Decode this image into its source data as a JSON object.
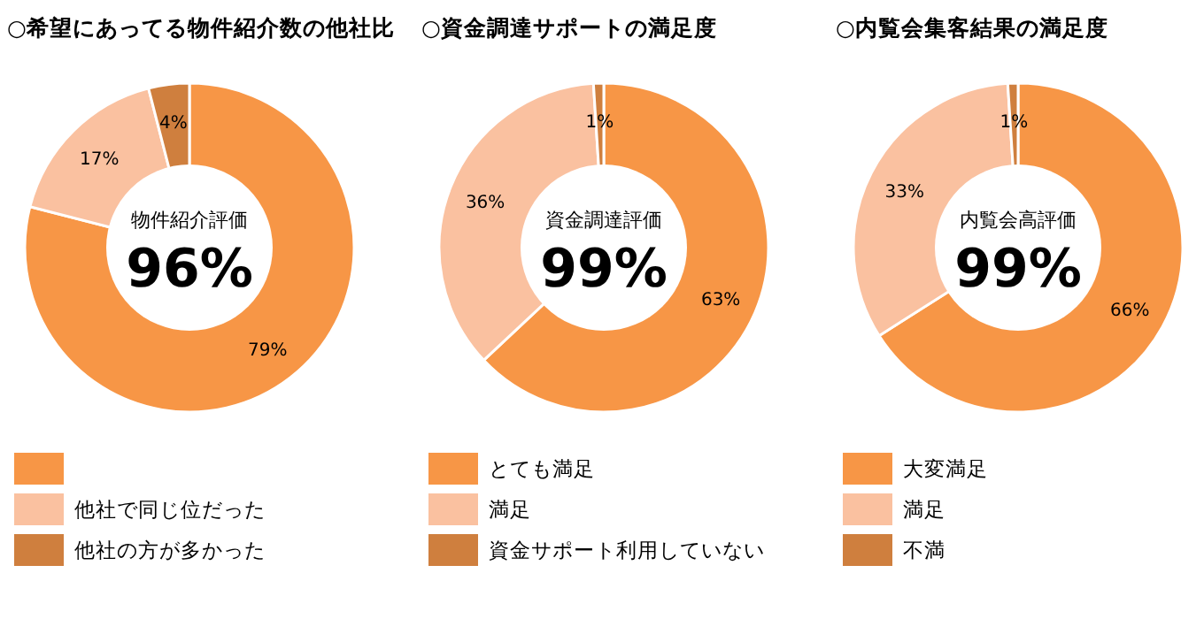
{
  "chart_data": [
    {
      "type": "donut",
      "title": "○希望にあってる物件紹介数の他社比",
      "categories": [
        null,
        "他社で同じ位だった",
        "他社の方が多かった"
      ],
      "values": [
        79,
        17,
        4
      ],
      "colors": [
        "#f79646",
        "#fac1a0",
        "#cf7f3e"
      ],
      "value_labels": [
        "79%",
        "17%",
        "4%"
      ],
      "legend": "bottom",
      "annotations": [
        "物件紹介評価",
        "96%"
      ]
    },
    {
      "type": "donut",
      "title": "○資金調達サポートの満足度",
      "categories": [
        "とても満足",
        "満足",
        "資金サポート利用していない"
      ],
      "values": [
        63,
        36,
        1
      ],
      "colors": [
        "#f79646",
        "#fac1a0",
        "#cf7f3e"
      ],
      "value_labels": [
        "63%",
        "36%",
        "1%"
      ],
      "legend": "bottom",
      "annotations": [
        "資金調達評価",
        "99%"
      ]
    },
    {
      "type": "donut",
      "title": "○内覧会集客結果の満足度",
      "categories": [
        "大変満足",
        "満足",
        "不満"
      ],
      "values": [
        66,
        33,
        1
      ],
      "colors": [
        "#f79646",
        "#fac1a0",
        "#cf7f3e"
      ],
      "value_labels": [
        "66%",
        "33%",
        "1%"
      ],
      "legend": "bottom",
      "annotations": [
        "内覧会高評価",
        "99%"
      ]
    }
  ]
}
